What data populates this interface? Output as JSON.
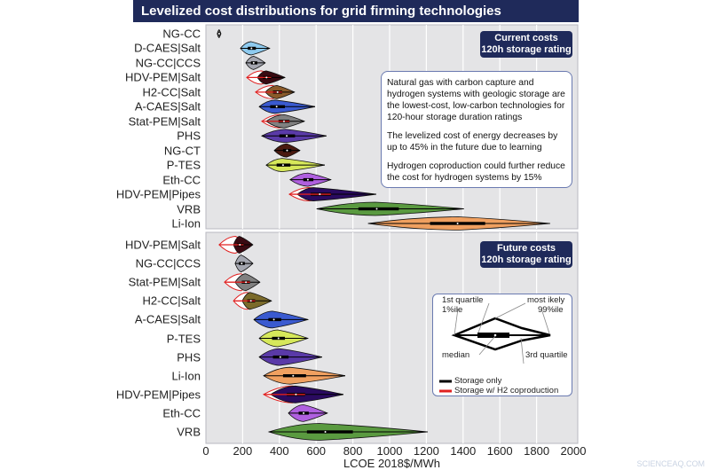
{
  "title": "Levelized cost distributions for grid firming technologies",
  "chart_data": [
    {
      "type": "violin",
      "panel_label": [
        "Current costs",
        "120h storage rating"
      ],
      "xlabel": "LCOE 2018$/MWh",
      "xlim": [
        0,
        2000
      ],
      "xticks": [
        "0",
        "200",
        "400",
        "600",
        "800",
        "1000",
        "1200",
        "1400",
        "1600",
        "1800",
        "2000"
      ],
      "grid": true,
      "annotation": [
        "Natural gas with carbon capture and hydrogen systems with geologic storage are the lowest-cost, low-carbon technologies for 120-hour storage duration ratings",
        "The levelized cost of energy decreases by up to 45% in the future due to learning",
        "Hydrogen coproduction could further reduce the cost for hydrogen systems by 15%"
      ],
      "series": [
        {
          "name": "NG-CC",
          "p1": 62,
          "q1": 68,
          "median": 72,
          "q3": 76,
          "p99": 82,
          "mode": 72,
          "color": "#555555"
        },
        {
          "name": "D-CAES|Salt",
          "p1": 188,
          "q1": 228,
          "median": 248,
          "q3": 272,
          "p99": 347,
          "mode": 246,
          "color": "#8ecbf0"
        },
        {
          "name": "NG-CC|CCS",
          "p1": 217,
          "q1": 245,
          "median": 260,
          "q3": 280,
          "p99": 323,
          "mode": 260,
          "color": "#a4a6b0"
        },
        {
          "name": "HDV-PEM|Salt",
          "p1": 280,
          "q1": 310,
          "median": 330,
          "q3": 355,
          "p99": 430,
          "mode": 328,
          "color": "#3a0a12",
          "coproduction": {
            "p1": 222,
            "mode": 300,
            "p99": 410
          }
        },
        {
          "name": "H2-CC|Salt",
          "p1": 323,
          "q1": 365,
          "median": 390,
          "q3": 415,
          "p99": 482,
          "mode": 386,
          "color": "#8a5a2a",
          "coproduction": {
            "p1": 270,
            "mode": 360,
            "p99": 460
          }
        },
        {
          "name": "A-CAES|Salt",
          "p1": 290,
          "q1": 350,
          "median": 385,
          "q3": 430,
          "p99": 594,
          "mode": 376,
          "color": "#3a5ad0"
        },
        {
          "name": "Stat-PEM|Salt",
          "p1": 328,
          "q1": 395,
          "median": 425,
          "q3": 455,
          "p99": 536,
          "mode": 425,
          "color": "#808080",
          "coproduction": {
            "p1": 304,
            "mode": 400,
            "p99": 515
          }
        },
        {
          "name": "PHS",
          "p1": 304,
          "q1": 400,
          "median": 440,
          "q3": 485,
          "p99": 656,
          "mode": 434,
          "color": "#5a3aa8"
        },
        {
          "name": "NG-CT",
          "p1": 372,
          "q1": 420,
          "median": 442,
          "q3": 465,
          "p99": 512,
          "mode": 440,
          "color": "#4a1a10"
        },
        {
          "name": "P-TES",
          "p1": 328,
          "q1": 385,
          "median": 420,
          "q3": 460,
          "p99": 647,
          "mode": 415,
          "color": "#d6e85a"
        },
        {
          "name": "Eth-CC",
          "p1": 458,
          "q1": 530,
          "median": 555,
          "q3": 585,
          "p99": 680,
          "mode": 555,
          "color": "#b060e0"
        },
        {
          "name": "HDV-PEM|Pipes",
          "p1": 497,
          "q1": 570,
          "median": 620,
          "q3": 680,
          "p99": 927,
          "mode": 585,
          "color": "#2a0a60",
          "coproduction": {
            "p1": 454,
            "mode": 560,
            "p99": 890
          }
        },
        {
          "name": "VRB",
          "p1": 603,
          "q1": 830,
          "median": 930,
          "q3": 1050,
          "p99": 1404,
          "mode": 922,
          "color": "#5a9a40"
        },
        {
          "name": "Li-Ion",
          "p1": 883,
          "q1": 1220,
          "median": 1370,
          "q3": 1520,
          "p99": 1873,
          "mode": 1375,
          "color": "#f0a060"
        }
      ]
    },
    {
      "type": "violin",
      "panel_label": [
        "Future costs",
        "120h storage rating"
      ],
      "xlabel": "LCOE 2018$/MWh",
      "xlim": [
        0,
        2000
      ],
      "grid": true,
      "legend": {
        "position": "right",
        "labels": {
          "q1": "1st quartile",
          "mode": "most ikely",
          "p1": "1%ile",
          "p99": "99%ile",
          "median": "median",
          "q3": "3rd quartile"
        },
        "entries": [
          {
            "label": "Storage only",
            "color": "#000000"
          },
          {
            "label": "Storage w/ H2 coproduction",
            "color": "#e02020"
          }
        ]
      },
      "series": [
        {
          "name": "HDV-PEM|Salt",
          "p1": 150,
          "q1": 170,
          "median": 185,
          "q3": 205,
          "p99": 256,
          "mode": 183,
          "color": "#3a0a12",
          "coproduction": {
            "p1": 72,
            "mode": 160,
            "p99": 240
          }
        },
        {
          "name": "NG-CC|CCS",
          "p1": 159,
          "q1": 180,
          "median": 195,
          "q3": 212,
          "p99": 256,
          "mode": 193,
          "color": "#a4a6b0"
        },
        {
          "name": "Stat-PEM|Salt",
          "p1": 159,
          "q1": 195,
          "median": 218,
          "q3": 240,
          "p99": 294,
          "mode": 217,
          "color": "#808080",
          "coproduction": {
            "p1": 101,
            "mode": 190,
            "p99": 280
          }
        },
        {
          "name": "H2-CC|Salt",
          "p1": 198,
          "q1": 225,
          "median": 245,
          "q3": 268,
          "p99": 357,
          "mode": 241,
          "color": "#7a6a2a",
          "coproduction": {
            "p1": 150,
            "mode": 225,
            "p99": 345
          }
        },
        {
          "name": "A-CAES|Salt",
          "p1": 261,
          "q1": 340,
          "median": 370,
          "q3": 410,
          "p99": 555,
          "mode": 362,
          "color": "#3a5ad0"
        },
        {
          "name": "P-TES",
          "p1": 290,
          "q1": 360,
          "median": 395,
          "q3": 430,
          "p99": 555,
          "mode": 391,
          "color": "#d6e85a"
        },
        {
          "name": "PHS",
          "p1": 290,
          "q1": 365,
          "median": 405,
          "q3": 450,
          "p99": 632,
          "mode": 400,
          "color": "#5a3aa8"
        },
        {
          "name": "Li-Ion",
          "p1": 314,
          "q1": 420,
          "median": 475,
          "q3": 545,
          "p99": 758,
          "mode": 458,
          "color": "#f0a060"
        },
        {
          "name": "HDV-PEM|Pipes",
          "p1": 352,
          "q1": 440,
          "median": 490,
          "q3": 540,
          "p99": 748,
          "mode": 487,
          "color": "#2a0a60",
          "coproduction": {
            "p1": 314,
            "mode": 470,
            "p99": 730
          }
        },
        {
          "name": "Eth-CC",
          "p1": 449,
          "q1": 505,
          "median": 532,
          "q3": 560,
          "p99": 661,
          "mode": 531,
          "color": "#b060e0"
        },
        {
          "name": "VRB",
          "p1": 343,
          "q1": 550,
          "median": 650,
          "q3": 800,
          "p99": 1207,
          "mode": 618,
          "color": "#5a9a40"
        }
      ]
    }
  ],
  "credit": "SCIENCEAQ.COM"
}
